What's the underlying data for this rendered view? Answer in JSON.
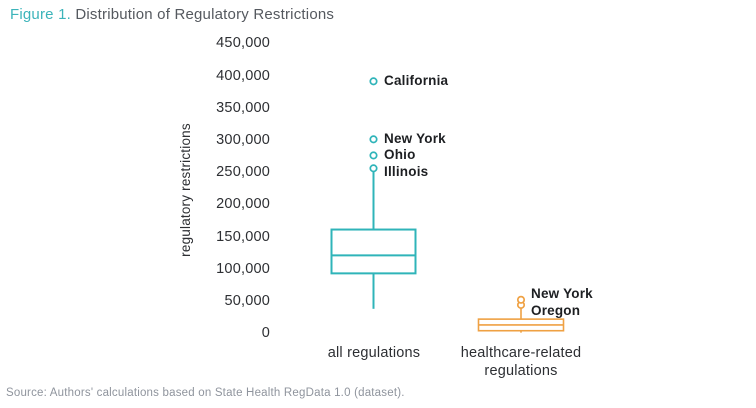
{
  "title": {
    "prefix": "Figure 1.",
    "rest": " Distribution of Regulatory Restrictions"
  },
  "source": "Source: Authors' calculations based on State Health RegData 1.0 (dataset).",
  "colors": {
    "teal": "#2fb4b9",
    "orange": "#efa143",
    "title_prefix": "#3cb4ba"
  },
  "chart_data": {
    "type": "boxplot",
    "title": "Figure 1. Distribution of Regulatory Restrictions",
    "ylabel": "regulatory restrictions",
    "ylim": [
      0,
      450000
    ],
    "ytick_step": 50000,
    "ytick_labels": [
      "450,000",
      "400,000",
      "350,000",
      "300,000",
      "250,000",
      "200,000",
      "150,000",
      "100,000",
      "50,000",
      "0"
    ],
    "grid": false,
    "legend": false,
    "series": [
      {
        "name": "all regulations",
        "color": "#2fb4b9",
        "whisker_low": 38000,
        "q1": 93000,
        "median": 121000,
        "q3": 161000,
        "whisker_high": 261000,
        "outliers": [
          {
            "label": "Illinois",
            "value": 256000
          },
          {
            "label": "Ohio",
            "value": 276000
          },
          {
            "label": "New York",
            "value": 301000
          },
          {
            "label": "California",
            "value": 391000
          }
        ]
      },
      {
        "name": "healthcare-related regulations",
        "color": "#efa143",
        "whisker_low": 1000,
        "q1": 4000,
        "median": 13000,
        "q3": 22000,
        "whisker_high": 39000,
        "outliers": [
          {
            "label": "Oregon",
            "value": 44000
          },
          {
            "label": "New York",
            "value": 52000
          }
        ]
      }
    ]
  }
}
